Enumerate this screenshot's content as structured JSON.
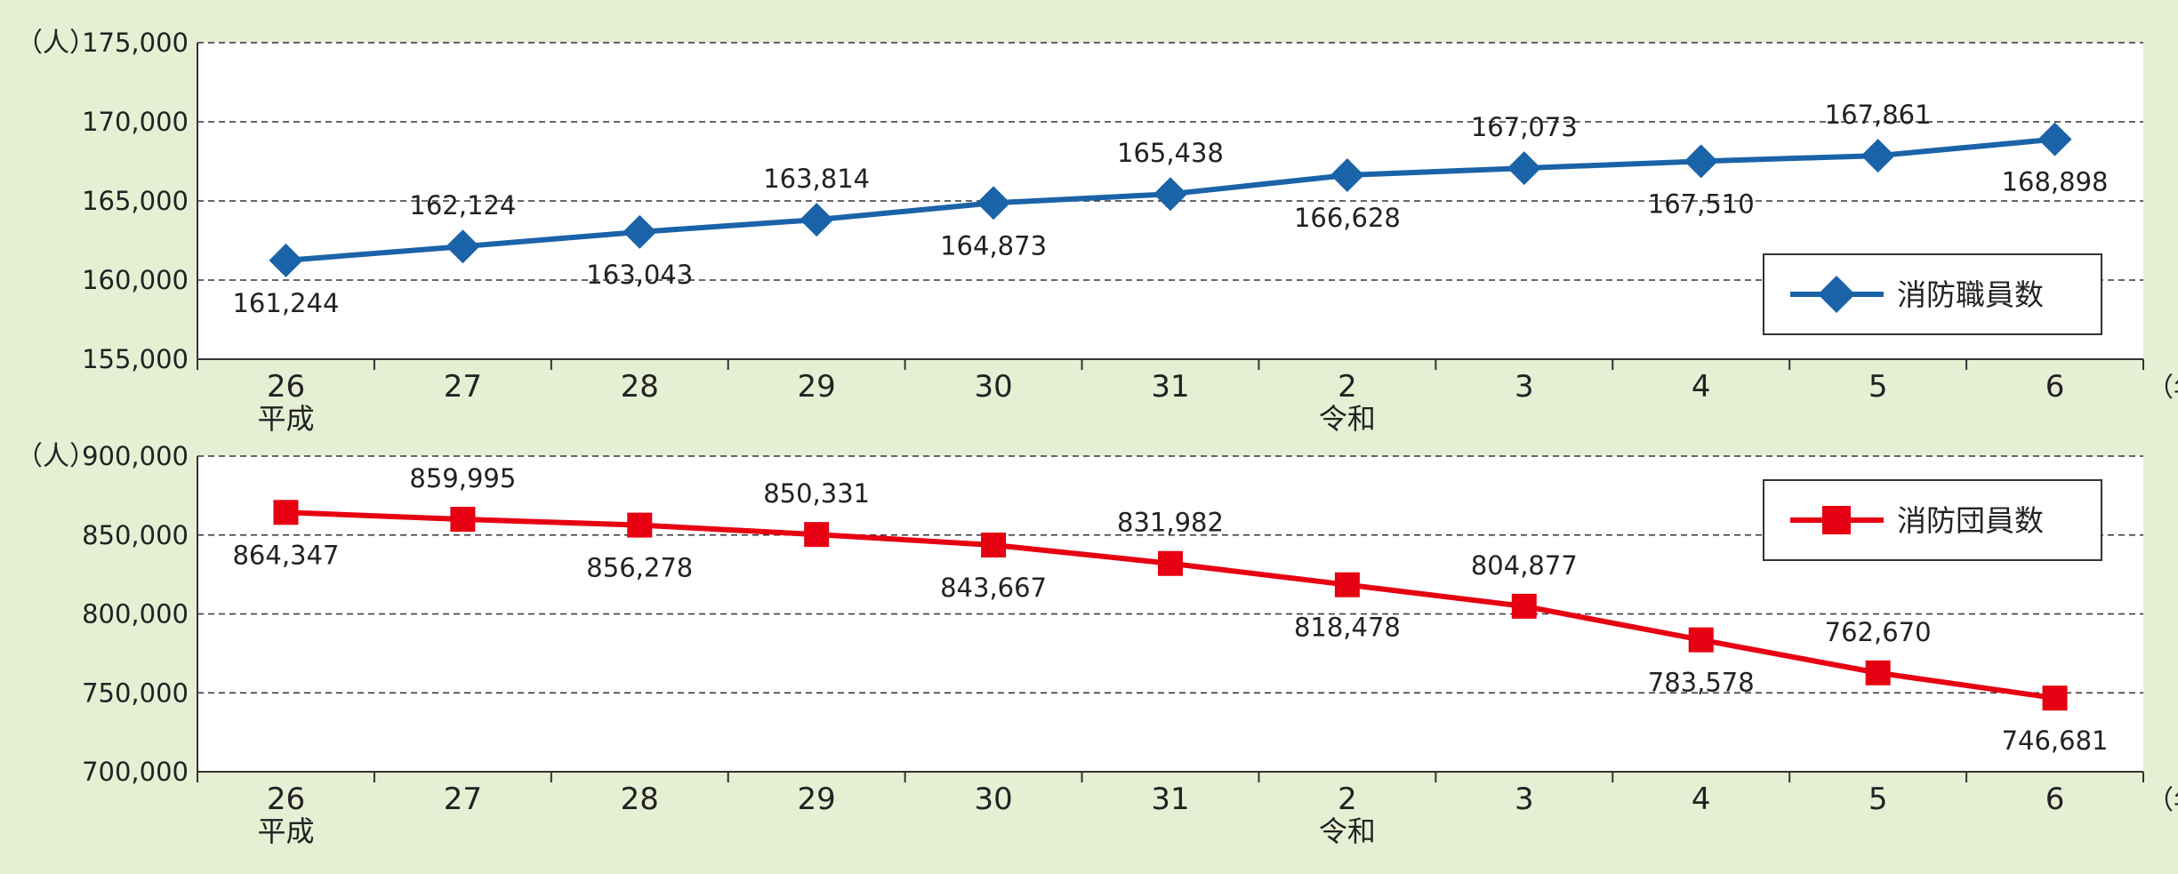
{
  "chart_data": [
    {
      "type": "line",
      "unit_label": "（人）",
      "x_unit_label": "（年）",
      "categories": [
        "26",
        "27",
        "28",
        "29",
        "30",
        "31",
        "2",
        "3",
        "4",
        "5",
        "6"
      ],
      "era_labels": [
        {
          "index": 0,
          "text": "平成"
        },
        {
          "index": 6,
          "text": "令和"
        }
      ],
      "ylim": [
        155000,
        175000
      ],
      "yticks": [
        155000,
        160000,
        165000,
        170000,
        175000
      ],
      "ytick_labels": [
        "155,000",
        "160,000",
        "165,000",
        "170,000",
        "175,000"
      ],
      "grid": true,
      "legend_position": "bottom-right",
      "series": [
        {
          "name": "消防職員数",
          "color": "#1b63a8",
          "marker": "diamond",
          "values": [
            161244,
            162124,
            163043,
            163814,
            164873,
            165438,
            166628,
            167073,
            167510,
            167861,
            168898
          ],
          "value_labels": [
            "161,244",
            "162,124",
            "163,043",
            "163,814",
            "164,873",
            "165,438",
            "166,628",
            "167,073",
            "167,510",
            "167,861",
            "168,898"
          ],
          "label_positions": [
            "below",
            "above",
            "below",
            "above",
            "below",
            "above",
            "below",
            "above",
            "below",
            "above",
            "below"
          ]
        }
      ]
    },
    {
      "type": "line",
      "unit_label": "（人）",
      "x_unit_label": "（年）",
      "categories": [
        "26",
        "27",
        "28",
        "29",
        "30",
        "31",
        "2",
        "3",
        "4",
        "5",
        "6"
      ],
      "era_labels": [
        {
          "index": 0,
          "text": "平成"
        },
        {
          "index": 6,
          "text": "令和"
        }
      ],
      "ylim": [
        700000,
        900000
      ],
      "yticks": [
        700000,
        750000,
        800000,
        850000,
        900000
      ],
      "ytick_labels": [
        "700,000",
        "750,000",
        "800,000",
        "850,000",
        "900,000"
      ],
      "grid": true,
      "legend_position": "top-right",
      "series": [
        {
          "name": "消防団員数",
          "color": "#e60012",
          "marker": "square",
          "values": [
            864347,
            859995,
            856278,
            850331,
            843667,
            831982,
            818478,
            804877,
            783578,
            762670,
            746681
          ],
          "value_labels": [
            "864,347",
            "859,995",
            "856,278",
            "850,331",
            "843,667",
            "831,982",
            "818,478",
            "804,877",
            "783,578",
            "762,670",
            "746,681"
          ],
          "label_positions": [
            "below",
            "above",
            "below",
            "above",
            "below",
            "above",
            "below",
            "above",
            "below",
            "above",
            "below"
          ]
        }
      ]
    }
  ]
}
